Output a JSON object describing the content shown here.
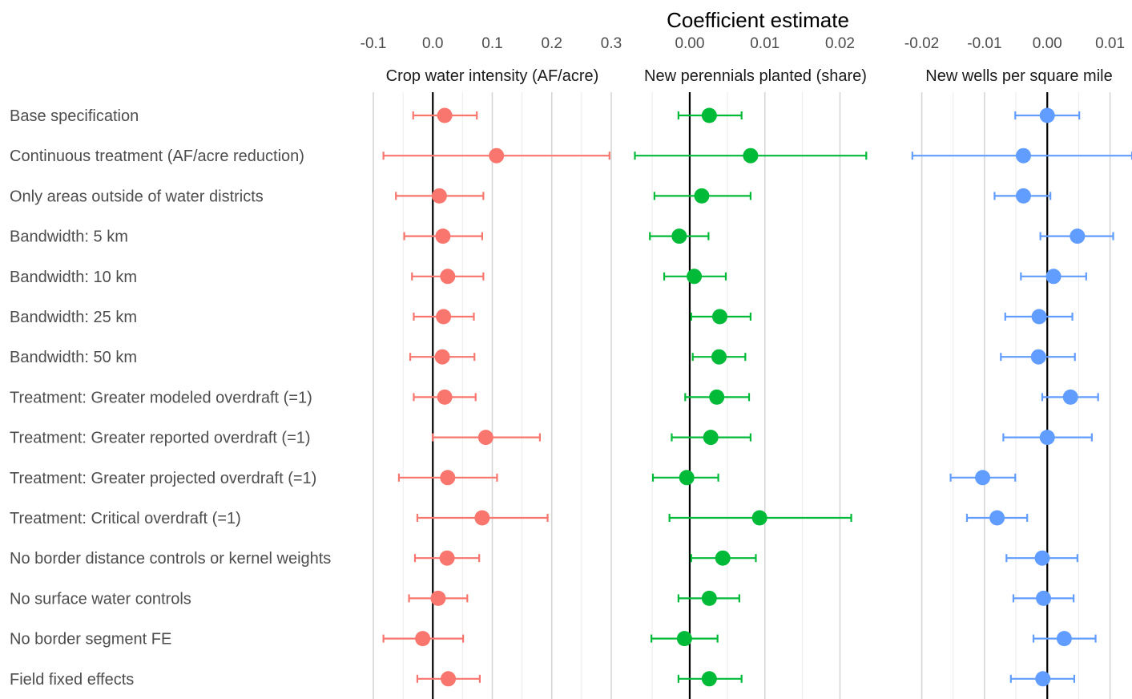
{
  "chart_data": {
    "type": "scatter",
    "subtype": "coefficient-plot",
    "title": "Coefficient estimate",
    "row_labels": [
      "Base specification",
      "Continuous treatment (AF/acre reduction)",
      "Only areas outside of water districts",
      "Bandwidth: 5 km",
      "Bandwidth: 10 km",
      "Bandwidth: 25 km",
      "Bandwidth: 50 km",
      "Treatment: Greater modeled overdraft (=1)",
      "Treatment: Greater reported overdraft (=1)",
      "Treatment: Greater projected overdraft (=1)",
      "Treatment: Critical overdraft (=1)",
      "No border distance controls or kernel weights",
      "No surface water controls",
      "No border segment FE",
      "Field fixed effects"
    ],
    "grid": true,
    "reference_line": 0,
    "panels": [
      {
        "facet_label": "Crop water intensity (AF/acre)",
        "color": "#F8766D",
        "xlim": [
          -0.1,
          0.3
        ],
        "ticks": [
          -0.1,
          0.0,
          0.1,
          0.2,
          0.3
        ],
        "tick_labels": [
          "-0.1",
          "0.0",
          "0.1",
          "0.2",
          "0.3"
        ],
        "estimate": [
          0.02,
          0.107,
          0.011,
          0.017,
          0.025,
          0.018,
          0.016,
          0.02,
          0.089,
          0.025,
          0.083,
          0.024,
          0.009,
          -0.017,
          0.026
        ],
        "ci_low": [
          -0.033,
          -0.083,
          -0.062,
          -0.048,
          -0.035,
          -0.032,
          -0.038,
          -0.032,
          0.0,
          -0.057,
          -0.026,
          -0.03,
          -0.04,
          -0.083,
          -0.026
        ],
        "ci_high": [
          0.074,
          0.297,
          0.085,
          0.083,
          0.085,
          0.069,
          0.07,
          0.072,
          0.18,
          0.108,
          0.193,
          0.078,
          0.058,
          0.051,
          0.079
        ]
      },
      {
        "facet_label": "New perennials planted (share)",
        "color": "#00BA38",
        "xlim": [
          -0.0065,
          0.024
        ],
        "ticks": [
          0.0,
          0.01,
          0.02
        ],
        "tick_labels": [
          "0.00",
          "0.01",
          "0.02"
        ],
        "estimate": [
          0.0026,
          0.0081,
          0.0016,
          -0.0014,
          0.0006,
          0.004,
          0.0039,
          0.0036,
          0.0028,
          -0.0004,
          0.0093,
          0.0044,
          0.0026,
          -0.0007,
          0.0026
        ],
        "ci_low": [
          -0.0015,
          -0.0073,
          -0.0047,
          -0.0053,
          -0.0034,
          0.0002,
          0.0004,
          -0.0006,
          -0.0024,
          -0.0049,
          -0.0027,
          0.0002,
          -0.0015,
          -0.0051,
          -0.0015
        ],
        "ci_high": [
          0.0069,
          0.0235,
          0.0081,
          0.0025,
          0.0048,
          0.0081,
          0.0074,
          0.0079,
          0.0081,
          0.0038,
          0.0215,
          0.0088,
          0.0066,
          0.0037,
          0.0069
        ]
      },
      {
        "facet_label": "New wells per square mile",
        "color": "#619CFF",
        "xlim": [
          -0.0225,
          0.0135
        ],
        "ticks": [
          -0.02,
          -0.01,
          0.0,
          0.01
        ],
        "tick_labels": [
          "-0.02",
          "-0.01",
          "0.00",
          "0.01"
        ],
        "estimate": [
          0.0,
          -0.0038,
          -0.0038,
          0.0048,
          0.001,
          -0.0013,
          -0.0014,
          0.0037,
          0.0,
          -0.0103,
          -0.008,
          -0.0008,
          -0.0006,
          0.0027,
          -0.0007
        ],
        "ci_low": [
          -0.0051,
          -0.0215,
          -0.0084,
          -0.0011,
          -0.0042,
          -0.0067,
          -0.0074,
          -0.0008,
          -0.007,
          -0.0154,
          -0.0128,
          -0.0065,
          -0.0054,
          -0.0022,
          -0.0058
        ],
        "ci_high": [
          0.0051,
          0.0135,
          0.0005,
          0.0105,
          0.0062,
          0.004,
          0.0044,
          0.0081,
          0.0071,
          -0.0051,
          -0.0032,
          0.0048,
          0.0042,
          0.0077,
          0.0043
        ]
      }
    ]
  }
}
